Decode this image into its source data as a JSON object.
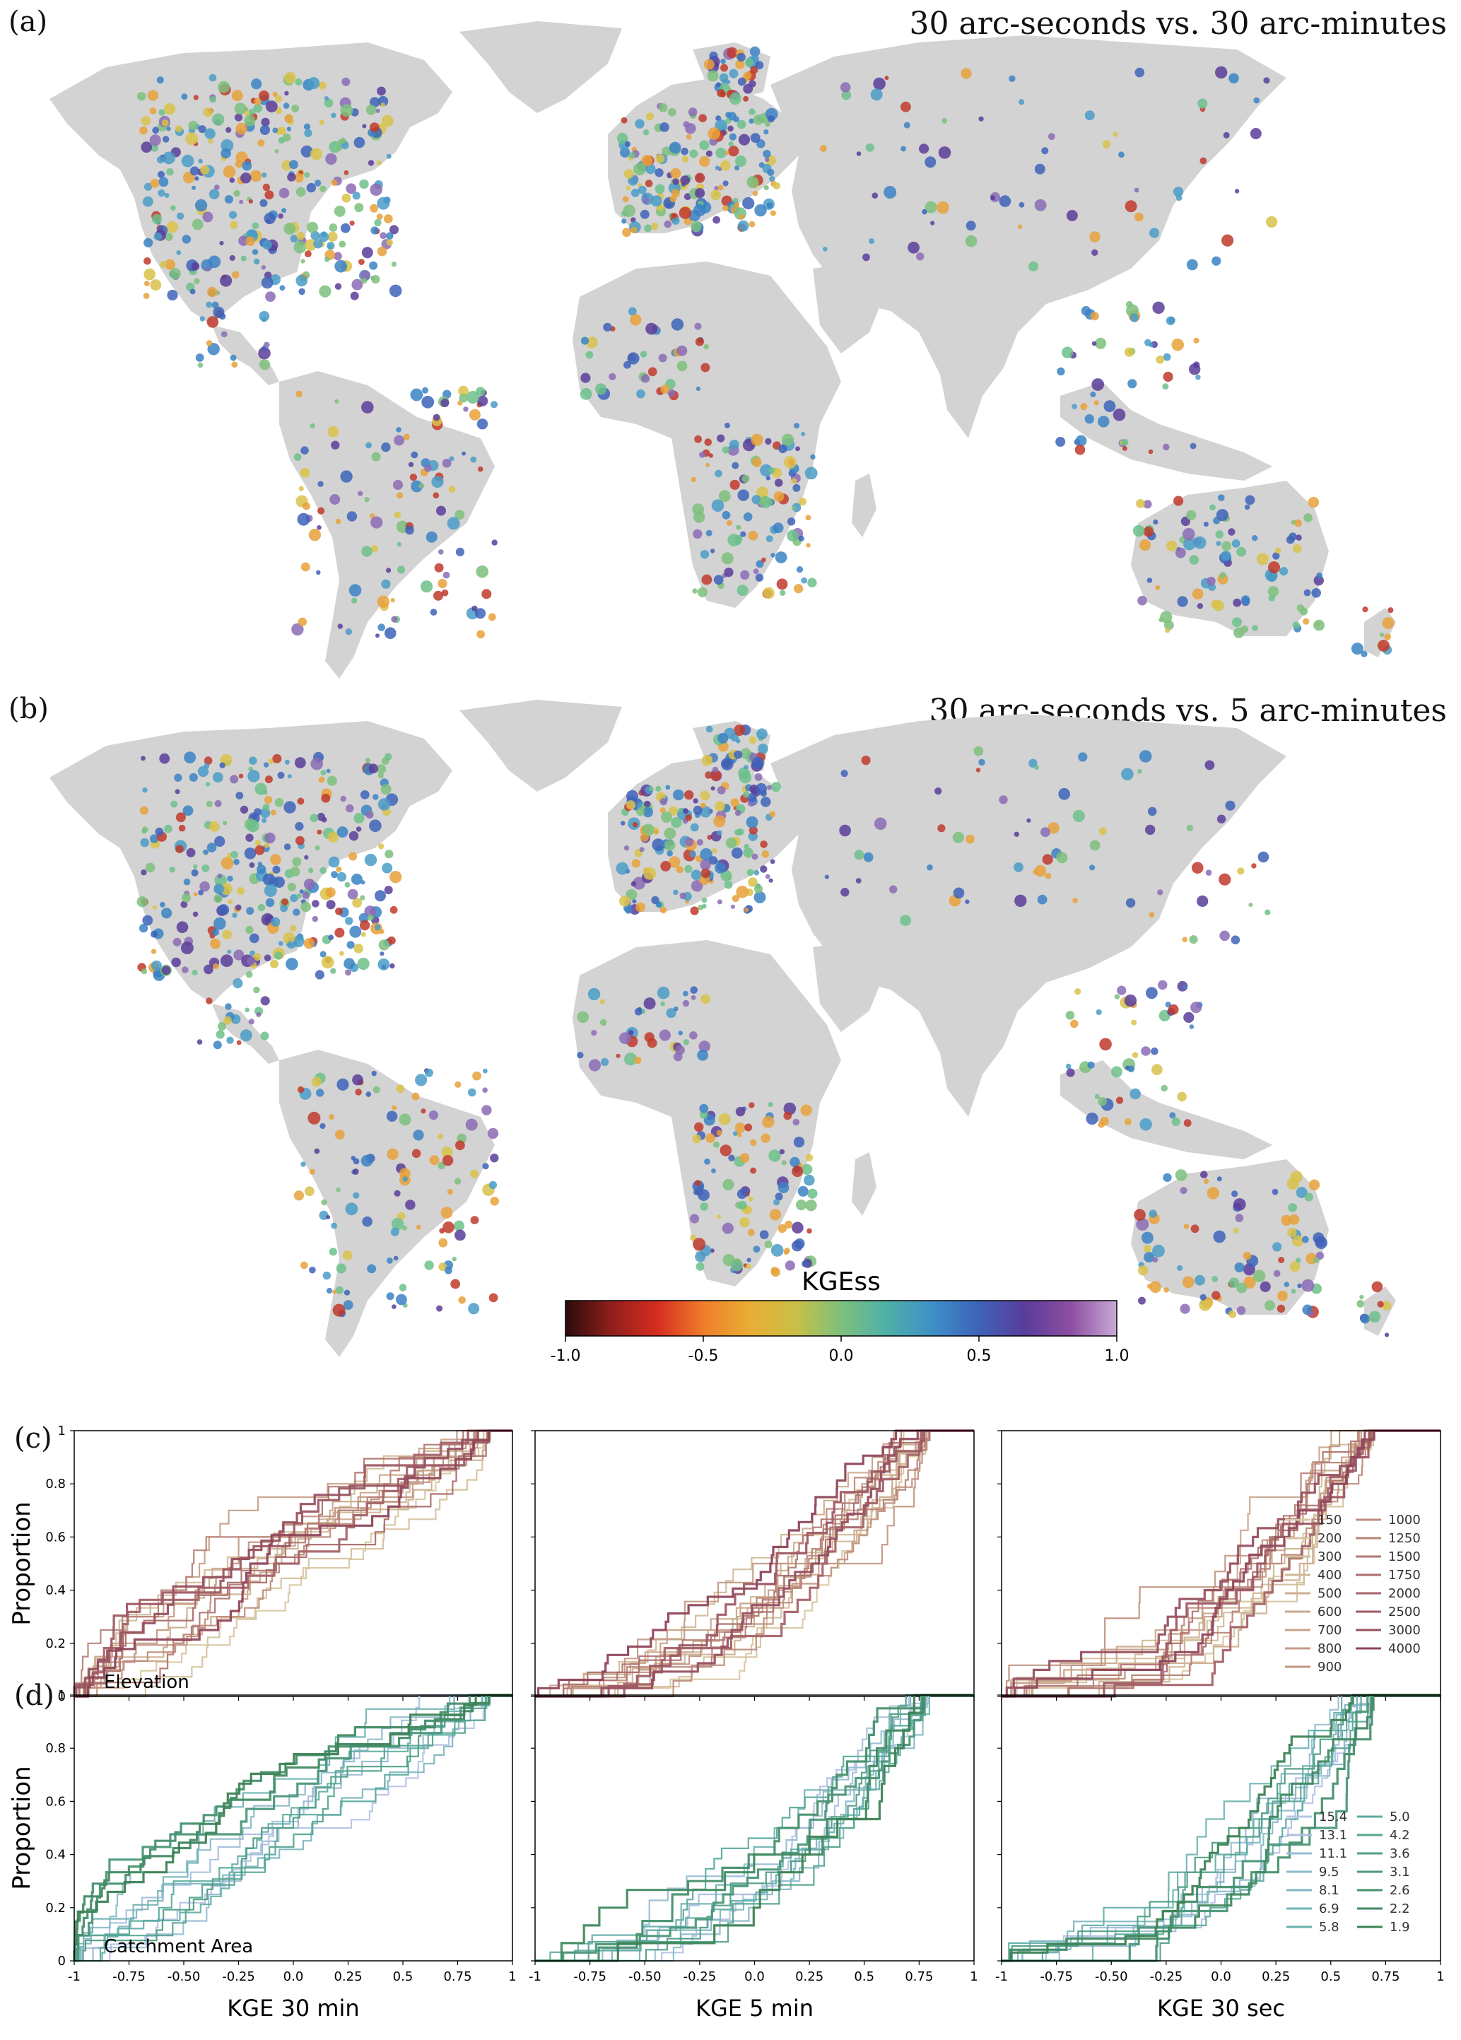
{
  "panels": {
    "a": {
      "label": "(a)",
      "title": "30 arc-seconds vs. 30 arc-minutes"
    },
    "b": {
      "label": "(b)",
      "title": "30 arc-seconds vs. 5 arc-minutes"
    },
    "c": {
      "label": "(c)"
    },
    "d": {
      "label": "(d)"
    }
  },
  "colorbar": {
    "label": "KGEss",
    "ticks": [
      "-1.0",
      "-0.5",
      "0.0",
      "0.5",
      "1.0"
    ],
    "colors": [
      "#2b0c0c",
      "#8f1f1a",
      "#d62d22",
      "#ef7d2a",
      "#e9ad33",
      "#c9bf46",
      "#7cc07c",
      "#4fb0a8",
      "#3d8fc7",
      "#3d63b8",
      "#5a3d9a",
      "#8c4fa2",
      "#c9a9d6"
    ]
  },
  "map_colors": [
    "#3b82c4",
    "#4a9bc7",
    "#6cbf8a",
    "#e8a13a",
    "#d9c24a",
    "#5a3d9a",
    "#c0392b",
    "#8b6bb5",
    "#3d63b8",
    "#7cc07c"
  ],
  "land_color": "#d3d3d3",
  "chart_data": [
    {
      "type": "line",
      "panel": "c",
      "xlabel": "",
      "ylabel": "Proportion",
      "annotation": "Elevation",
      "xlim": [
        -1,
        1
      ],
      "ylim": [
        0,
        1
      ],
      "yticks": [
        "0",
        "0.2",
        "0.4",
        "0.6",
        "0.8",
        "1"
      ],
      "legend_title": "",
      "legend": [
        "150",
        "200",
        "300",
        "400",
        "500",
        "600",
        "700",
        "800",
        "900",
        "1000",
        "1250",
        "1500",
        "1750",
        "2000",
        "2500",
        "3000",
        "4000"
      ],
      "legend_colors": [
        "#d9c9a3",
        "#d6c39f",
        "#d3bd9b",
        "#d0b697",
        "#cdaf92",
        "#caa98e",
        "#c7a28a",
        "#c49b86",
        "#c19482",
        "#be8d7d",
        "#b88378",
        "#b27873",
        "#ab6e6e",
        "#a56469",
        "#9e5a64",
        "#97505f",
        "#90465a"
      ]
    },
    {
      "type": "line",
      "panel": "c",
      "xlabel": "",
      "ylabel": "",
      "xlim": [
        -1,
        1
      ],
      "ylim": [
        0,
        1
      ]
    },
    {
      "type": "line",
      "panel": "c",
      "xlabel": "",
      "ylabel": "",
      "xlim": [
        -1,
        1
      ],
      "ylim": [
        0,
        1
      ]
    },
    {
      "type": "line",
      "panel": "d",
      "xlabel": "KGE 30 min",
      "ylabel": "Proportion",
      "annotation": "Catchment Area",
      "xlim": [
        -1,
        1
      ],
      "ylim": [
        0,
        1
      ],
      "xticks": [
        "-1",
        "-0.75",
        "-0.50",
        "-0.25",
        "0.0",
        "0.25",
        "0.5",
        "0.75",
        "1"
      ],
      "yticks": [
        "0",
        "0.2",
        "0.4",
        "0.6",
        "0.8",
        "1"
      ],
      "legend": [
        "15.4",
        "13.1",
        "11.1",
        "9.5",
        "8.1",
        "6.9",
        "5.8",
        "5.0",
        "4.2",
        "3.6",
        "3.1",
        "2.6",
        "2.2",
        "1.9"
      ],
      "legend_colors": [
        "#b7c3e6",
        "#a9c0dd",
        "#9bbdd3",
        "#8dbac9",
        "#80b7bf",
        "#73b4b4",
        "#66b0aa",
        "#5cab9e",
        "#56a592",
        "#519e86",
        "#4c977a",
        "#47906e",
        "#428a62",
        "#3d8356"
      ]
    },
    {
      "type": "line",
      "panel": "d",
      "xlabel": "KGE 5 min",
      "ylabel": "",
      "xlim": [
        -1,
        1
      ],
      "ylim": [
        0,
        1
      ]
    },
    {
      "type": "line",
      "panel": "d",
      "xlabel": "KGE 30 sec",
      "ylabel": "",
      "xlim": [
        -1,
        1
      ],
      "ylim": [
        0,
        1
      ]
    }
  ]
}
